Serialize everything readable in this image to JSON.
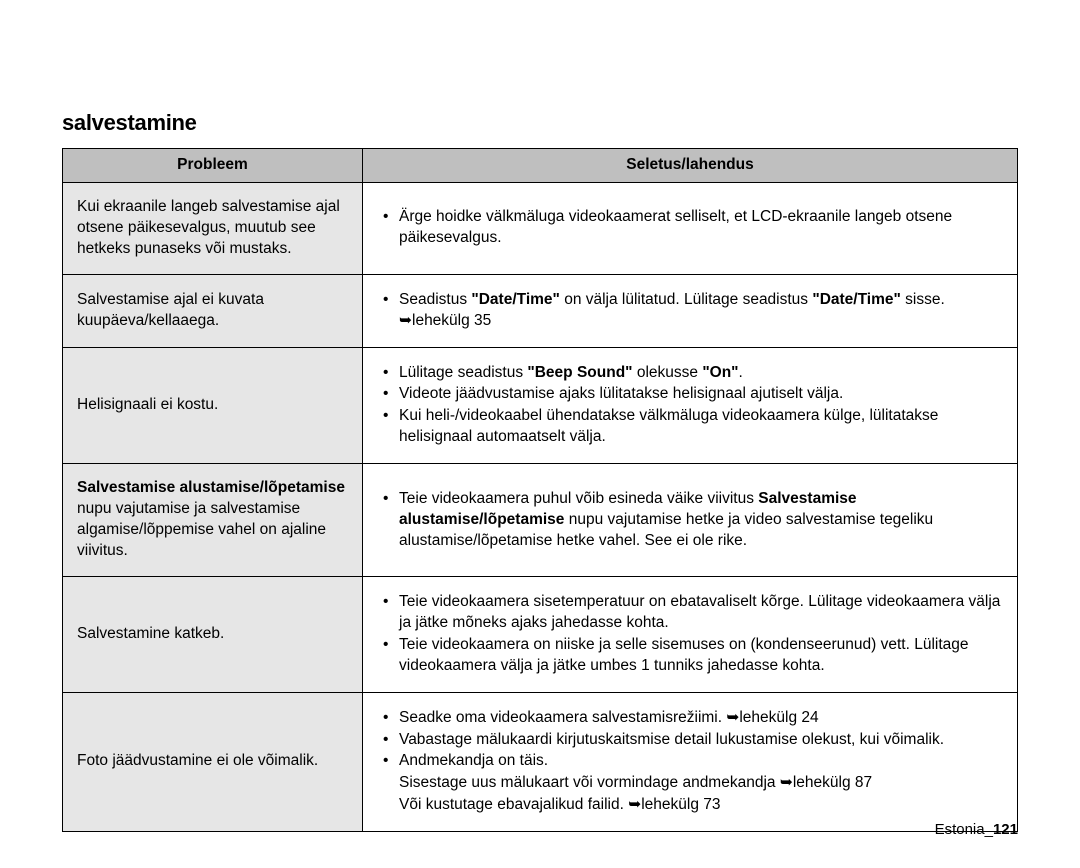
{
  "title": "salvestamine",
  "headers": {
    "problem": "Probleem",
    "solution": "Seletus/lahendus"
  },
  "rows": [
    {
      "problem_parts": [
        {
          "t": "Kui ekraanile langeb salvestamise ajal otsene päikesevalgus, muutub see hetkeks punaseks või mustaks."
        }
      ],
      "solution_items": [
        {
          "kind": "bullet",
          "runs": [
            {
              "t": "Ärge hoidke välkmäluga videokaamerat selliselt, et LCD-ekraanile langeb otsene päikesevalgus."
            }
          ]
        }
      ]
    },
    {
      "problem_parts": [
        {
          "t": "Salvestamise ajal ei kuvata kuupäeva/kellaaega."
        }
      ],
      "solution_items": [
        {
          "kind": "bullet",
          "runs": [
            {
              "t": "Seadistus "
            },
            {
              "t": "\"Date/Time\"",
              "b": true
            },
            {
              "t": " on välja lülitatud. Lülitage seadistus "
            },
            {
              "t": "\"Date/Time\"",
              "b": true
            },
            {
              "t": " sisse. "
            },
            {
              "t": "➥",
              "cls": "arrow"
            },
            {
              "t": "lehekülg 35"
            }
          ]
        }
      ]
    },
    {
      "problem_parts": [
        {
          "t": "Helisignaali ei kostu."
        }
      ],
      "solution_items": [
        {
          "kind": "bullet",
          "runs": [
            {
              "t": "Lülitage seadistus "
            },
            {
              "t": "\"Beep Sound\"",
              "b": true
            },
            {
              "t": " olekusse "
            },
            {
              "t": "\"On\"",
              "b": true
            },
            {
              "t": "."
            }
          ]
        },
        {
          "kind": "bullet",
          "runs": [
            {
              "t": "Videote jäädvustamise ajaks lülitatakse helisignaal ajutiselt välja."
            }
          ]
        },
        {
          "kind": "bullet",
          "runs": [
            {
              "t": "Kui heli-/videokaabel ühendatakse välkmäluga videokaamera külge, lülitatakse helisignaal automaatselt välja."
            }
          ]
        }
      ]
    },
    {
      "problem_parts": [
        {
          "t": "Salvestamise alustamise/lõpetamise",
          "b": true
        },
        {
          "t": " nupu vajutamise ja salvestamise algamise/lõppemise vahel on ajaline viivitus."
        }
      ],
      "solution_items": [
        {
          "kind": "bullet",
          "runs": [
            {
              "t": "Teie videokaamera puhul võib esineda väike viivitus "
            },
            {
              "t": "Salvestamise alustamise/lõpetamise",
              "b": true
            },
            {
              "t": " nupu vajutamise hetke ja video salvestamise tegeliku alustamise/lõpetamise hetke vahel. See ei ole rike."
            }
          ]
        }
      ]
    },
    {
      "problem_parts": [
        {
          "t": "Salvestamine katkeb."
        }
      ],
      "solution_items": [
        {
          "kind": "bullet",
          "runs": [
            {
              "t": "Teie videokaamera sisetemperatuur on ebatavaliselt kõrge. Lülitage videokaamera välja ja jätke mõneks ajaks jahedasse kohta."
            }
          ]
        },
        {
          "kind": "bullet",
          "runs": [
            {
              "t": "Teie videokaamera on niiske ja selle sisemuses on (kondenseerunud) vett. Lülitage videokaamera välja ja jätke umbes 1 tunniks jahedasse kohta."
            }
          ]
        }
      ]
    },
    {
      "problem_parts": [
        {
          "t": "Foto jäädvustamine ei ole võimalik."
        }
      ],
      "solution_items": [
        {
          "kind": "bullet",
          "runs": [
            {
              "t": "Seadke oma videokaamera salvestamisrežiimi. "
            },
            {
              "t": "➥",
              "cls": "arrow"
            },
            {
              "t": "lehekülg 24"
            }
          ]
        },
        {
          "kind": "bullet",
          "runs": [
            {
              "t": "Vabastage mälukaardi kirjutuskaitsmise detail lukustamise olekust, kui võimalik."
            }
          ]
        },
        {
          "kind": "bullet",
          "runs": [
            {
              "t": "Andmekandja on täis."
            }
          ]
        },
        {
          "kind": "sub",
          "runs": [
            {
              "t": "Sisestage uus mälukaart või vormindage andmekandja "
            },
            {
              "t": "➥",
              "cls": "arrow"
            },
            {
              "t": "lehekülg 87"
            }
          ]
        },
        {
          "kind": "sub",
          "runs": [
            {
              "t": "Või kustutage ebavajalikud failid. "
            },
            {
              "t": "➥",
              "cls": "arrow"
            },
            {
              "t": "lehekülg 73"
            }
          ]
        }
      ]
    }
  ],
  "footer": {
    "label": "Estonia",
    "sep": "_",
    "page": "121"
  }
}
